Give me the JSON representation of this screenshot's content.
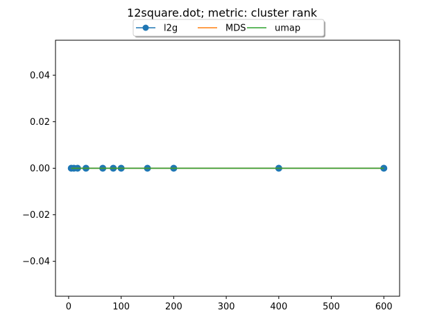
{
  "chart_data": {
    "type": "line",
    "title": "12square.dot; metric: cluster rank",
    "xlabel": "",
    "ylabel": "",
    "xlim": [
      -25,
      630
    ],
    "ylim": [
      -0.055,
      0.055
    ],
    "xticks": [
      0,
      100,
      200,
      300,
      400,
      500,
      600
    ],
    "xtick_labels": [
      "0",
      "100",
      "200",
      "300",
      "400",
      "500",
      "600"
    ],
    "yticks": [
      -0.04,
      -0.02,
      0.0,
      0.02,
      0.04
    ],
    "ytick_labels": [
      "−0.04",
      "−0.02",
      "0.00",
      "0.02",
      "0.04"
    ],
    "grid": false,
    "legend_position": "top-center",
    "series": [
      {
        "name": "l2g",
        "color": "#1f77b4",
        "marker": "circle",
        "x": [
          5,
          10,
          17,
          33,
          65,
          85,
          100,
          150,
          200,
          400,
          600
        ],
        "y": [
          0,
          0,
          0,
          0,
          0,
          0,
          0,
          0,
          0,
          0,
          0
        ]
      },
      {
        "name": "MDS",
        "color": "#ff7f0e",
        "marker": "none",
        "x": [
          5,
          10,
          17,
          33,
          65,
          85,
          100,
          150,
          200,
          400,
          600
        ],
        "y": [
          0,
          0,
          0,
          0,
          0,
          0,
          0,
          0,
          0,
          0,
          0
        ]
      },
      {
        "name": "umap",
        "color": "#2ca02c",
        "marker": "none",
        "x": [
          5,
          10,
          17,
          33,
          65,
          85,
          100,
          150,
          200,
          400,
          600
        ],
        "y": [
          0,
          0,
          0,
          0,
          0,
          0,
          0,
          0,
          0,
          0,
          0
        ]
      }
    ]
  }
}
